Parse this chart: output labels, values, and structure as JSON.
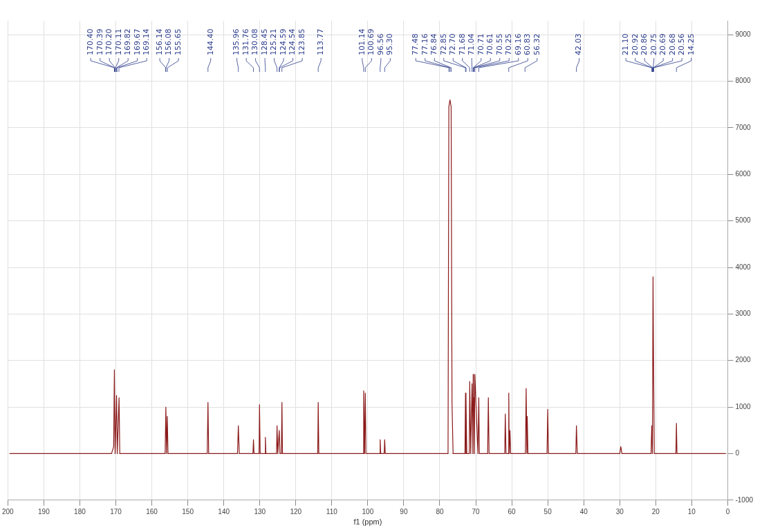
{
  "chart_data": {
    "type": "line",
    "xlabel": "f1 (ppm)",
    "color": "#8b1a1a",
    "grid": true,
    "legend": false,
    "marker": "none",
    "line_style": "solid",
    "xlim": [
      200,
      0
    ],
    "xticks": [
      200,
      190,
      180,
      170,
      160,
      150,
      140,
      130,
      120,
      110,
      100,
      90,
      80,
      70,
      60,
      50,
      40,
      30,
      20,
      10,
      0
    ],
    "ylim": [
      -1000,
      9300
    ],
    "yticks": [
      -1000,
      0,
      1000,
      2000,
      3000,
      4000,
      5000,
      6000,
      7000,
      8000,
      9000
    ],
    "x": [
      199.5,
      190,
      180,
      171.2,
      170.6,
      170.4,
      170.2,
      169.8,
      169.6,
      169.1,
      168.9,
      160,
      156.3,
      156.1,
      155.9,
      155.7,
      155.5,
      150,
      144.6,
      144.4,
      144.2,
      136.2,
      135.96,
      135.7,
      131.9,
      131.76,
      131.6,
      130.2,
      130.08,
      129.9,
      128.6,
      128.45,
      128.3,
      125.35,
      125.21,
      125.0,
      124.59,
      124.4,
      124.0,
      123.85,
      123.7,
      118,
      113.9,
      113.77,
      113.6,
      101.3,
      101.14,
      100.9,
      100.69,
      100.5,
      96.7,
      96.56,
      96.4,
      95.45,
      95.3,
      95.15,
      88,
      77.7,
      77.48,
      77.16,
      76.84,
      76.6,
      76.3,
      73.0,
      72.85,
      72.75,
      72.7,
      72.5,
      71.8,
      71.68,
      71.4,
      71.04,
      70.8,
      70.71,
      70.61,
      70.55,
      70.4,
      70.25,
      69.4,
      69.16,
      69.0,
      66.7,
      66.5,
      66.3,
      61.95,
      61.8,
      61.6,
      60.9,
      60.83,
      60.7,
      60.5,
      60.3,
      56.2,
      56.0,
      55.8,
      55.7,
      55.5,
      50.2,
      50.0,
      49.8,
      42.2,
      42.03,
      41.8,
      30,
      29.7,
      29.4,
      21.3,
      21.1,
      20.92,
      20.75,
      20.6,
      20.4,
      14.4,
      14.25,
      14.1,
      5,
      0.5
    ],
    "values": [
      0,
      0,
      0,
      0,
      150,
      1800,
      0,
      1250,
      0,
      1200,
      0,
      0,
      0,
      1000,
      0,
      800,
      0,
      0,
      0,
      1100,
      0,
      0,
      600,
      0,
      0,
      300,
      0,
      0,
      1050,
      0,
      0,
      350,
      0,
      0,
      600,
      0,
      500,
      0,
      0,
      1100,
      0,
      0,
      0,
      1100,
      0,
      0,
      1350,
      0,
      1300,
      0,
      0,
      300,
      0,
      0,
      300,
      0,
      0,
      0,
      7450,
      7600,
      7450,
      1100,
      0,
      0,
      1300,
      0,
      1300,
      0,
      0,
      1550,
      0,
      1500,
      0,
      1700,
      1100,
      1200,
      0,
      1700,
      0,
      1200,
      0,
      0,
      1200,
      0,
      0,
      850,
      0,
      0,
      1300,
      0,
      500,
      0,
      0,
      1400,
      0,
      800,
      0,
      0,
      950,
      0,
      0,
      600,
      0,
      0,
      150,
      0,
      0,
      600,
      0,
      3800,
      1900,
      0,
      0,
      650,
      0,
      0,
      0
    ],
    "annotations": [
      "170.40",
      "170.39",
      "170.20",
      "170.11",
      "169.82",
      "169.67",
      "169.14",
      "156.14",
      "156.08",
      "155.65",
      "144.40",
      "135.96",
      "131.76",
      "130.08",
      "128.45",
      "125.21",
      "124.59",
      "124.54",
      "123.85",
      "113.77",
      "101.14",
      "100.69",
      "96.56",
      "95.30",
      "77.48",
      "77.16",
      "76.84",
      "72.85",
      "72.70",
      "71.68",
      "71.04",
      "70.71",
      "70.61",
      "70.55",
      "70.25",
      "69.16",
      "60.83",
      "56.32",
      "42.03",
      "21.10",
      "20.92",
      "20.86",
      "20.75",
      "20.69",
      "20.68",
      "20.56",
      "14.25"
    ]
  }
}
